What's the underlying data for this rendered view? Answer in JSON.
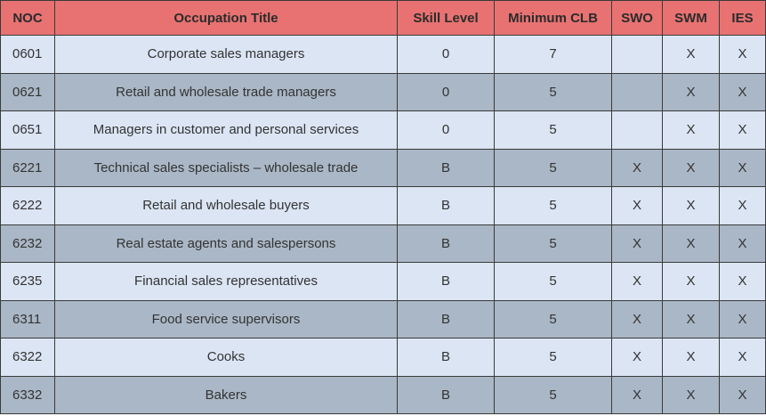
{
  "table": {
    "header": [
      "NOC",
      "Occupation Title",
      "Skill Level",
      "Minimum CLB",
      "SWO",
      "SWM",
      "IES"
    ],
    "rows": [
      [
        "0601",
        "Corporate sales managers",
        "0",
        "7",
        null,
        "X",
        "X"
      ],
      [
        "0621",
        "Retail and wholesale trade managers",
        "0",
        "5",
        null,
        "X",
        "X"
      ],
      [
        "0651",
        "Managers in customer and personal services",
        "0",
        "5",
        null,
        "X",
        "X"
      ],
      [
        "6221",
        "Technical sales specialists – wholesale trade",
        "B",
        "5",
        "X",
        "X",
        "X"
      ],
      [
        "6222",
        "Retail and wholesale buyers",
        "B",
        "5",
        "X",
        "X",
        "X"
      ],
      [
        "6232",
        "Real estate agents and salespersons",
        "B",
        "5",
        "X",
        "X",
        "X"
      ],
      [
        "6235",
        "Financial sales representatives",
        "B",
        "5",
        "X",
        "X",
        "X"
      ],
      [
        "6311",
        "Food service supervisors",
        "B",
        "5",
        "X",
        "X",
        "X"
      ],
      [
        "6322",
        "Cooks",
        "B",
        "5",
        "X",
        "X",
        "X"
      ],
      [
        "6332",
        "Bakers",
        "B",
        "5",
        "X",
        "X",
        "X"
      ]
    ]
  }
}
